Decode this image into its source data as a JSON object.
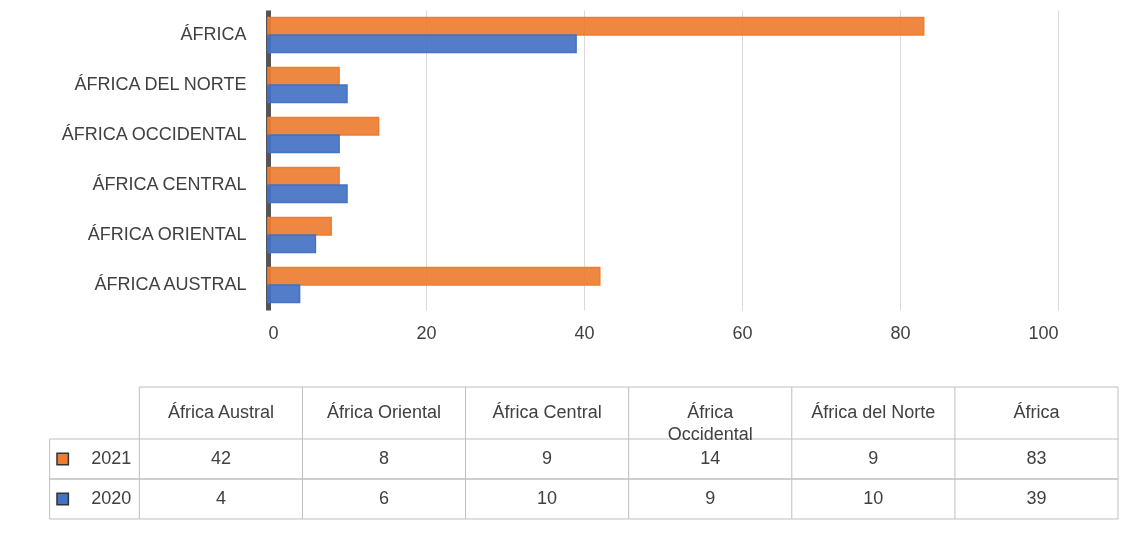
{
  "chart_data": [
    {
      "type": "bar",
      "orientation": "horizontal",
      "categories": [
        "ÁFRICA",
        "ÁFRICA DEL NORTE",
        "ÁFRICA OCCIDENTAL",
        "ÁFRICA CENTRAL",
        "ÁFRICA ORIENTAL",
        "ÁFRICA AUSTRAL"
      ],
      "series": [
        {
          "color": "#ed7d31",
          "values": [
            83,
            9,
            14,
            9,
            8,
            42
          ]
        },
        {
          "color": "#4472c4",
          "values": [
            39,
            10,
            9,
            10,
            6,
            4
          ]
        }
      ],
      "xlim": [
        0,
        100
      ],
      "xticks": [
        0,
        20,
        40,
        60,
        80,
        100
      ],
      "grid": "x"
    },
    {
      "type": "other",
      "legend": "left",
      "data_labels": true,
      "categories": [
        "África Austral",
        "África Oriental",
        "África Central",
        "África Occidental",
        "África del Norte",
        "África"
      ],
      "series": [
        {
          "name": "2021",
          "values": [
            42,
            8,
            9,
            14,
            9,
            83
          ]
        },
        {
          "name": "2020",
          "values": [
            4,
            6,
            10,
            9,
            10,
            39
          ]
        }
      ]
    }
  ]
}
